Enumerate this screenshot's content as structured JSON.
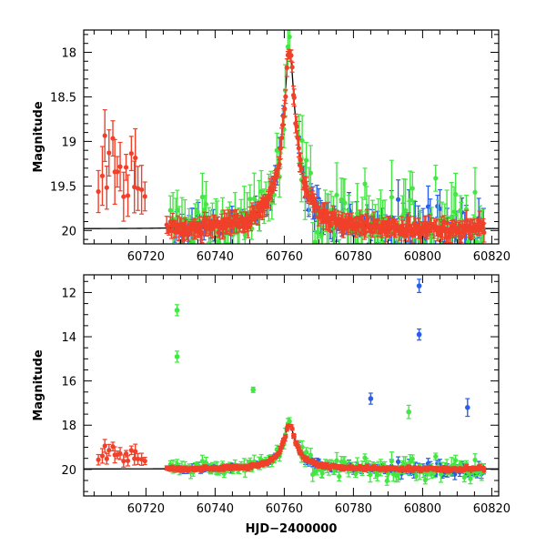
{
  "chart_data": [
    {
      "type": "scatter",
      "xlabel": "",
      "ylabel": "Magnitude",
      "xlim": [
        60702,
        60822
      ],
      "ylim": [
        20.15,
        17.75
      ],
      "y_inverted": true,
      "xticks": [
        60720,
        60740,
        60760,
        60780,
        60800,
        60820
      ],
      "xtick_labels": [
        "60720",
        "60740",
        "60760",
        "60780",
        "60800",
        "60820"
      ],
      "yticks": [
        18,
        18.5,
        19,
        19.5,
        20
      ],
      "ytick_labels": [
        "18",
        "18.5",
        "19",
        "19.5",
        "20"
      ],
      "model_curve": {
        "color": "#000000",
        "baseline": 19.98,
        "peak_mag": 17.98,
        "t0": 60761.5,
        "u0": 0.1,
        "tE": 15
      },
      "series": [
        {
          "color": "#2b5ee8",
          "segments": [
            {
              "x0": 60728,
              "x1": 60760,
              "n": 44,
              "err": 0.12,
              "scatter": 0.14
            },
            {
              "x0": 60764,
              "x1": 60790,
              "n": 40,
              "err": 0.14,
              "scatter": 0.18
            },
            {
              "x0": 60790,
              "x1": 60818,
              "n": 40,
              "err": 0.2,
              "scatter": 0.28
            }
          ]
        },
        {
          "color": "#44e644",
          "segments": [
            {
              "x0": 60727,
              "x1": 60762,
              "n": 55,
              "err": 0.2,
              "scatter": 0.3
            },
            {
              "x0": 60764,
              "x1": 60790,
              "n": 45,
              "err": 0.25,
              "scatter": 0.4
            },
            {
              "x0": 60790,
              "x1": 60818,
              "n": 45,
              "err": 0.28,
              "scatter": 0.45
            }
          ]
        },
        {
          "color": "#f0402a",
          "segments": [
            {
              "x0": 60706,
              "x1": 60720,
              "n": 18,
              "err": 0.25,
              "scatter": 0.25
            },
            {
              "x0": 60726,
              "x1": 60818,
              "n": 300,
              "err": 0.08,
              "scatter": 0.08
            }
          ]
        }
      ]
    },
    {
      "type": "scatter",
      "xlabel": "HJD−2400000",
      "ylabel": "Magnitude",
      "xlim": [
        60702,
        60822
      ],
      "ylim": [
        21.2,
        11.2
      ],
      "y_inverted": true,
      "xticks": [
        60720,
        60740,
        60760,
        60780,
        60800,
        60820
      ],
      "xtick_labels": [
        "60720",
        "60740",
        "60760",
        "60780",
        "60800",
        "60820"
      ],
      "yticks": [
        12,
        14,
        16,
        18,
        20
      ],
      "ytick_labels": [
        "12",
        "14",
        "16",
        "18",
        "20"
      ],
      "model_curve": {
        "color": "#000000",
        "baseline": 19.98,
        "peak_mag": 17.98,
        "t0": 60761.5,
        "u0": 0.1,
        "tE": 15
      },
      "outliers": [
        {
          "x": 60729,
          "y": 12.8,
          "err": 0.25,
          "color": "#44e644"
        },
        {
          "x": 60729,
          "y": 14.9,
          "err": 0.25,
          "color": "#44e644"
        },
        {
          "x": 60751,
          "y": 16.4,
          "err": 0.12,
          "color": "#44e644"
        },
        {
          "x": 60799,
          "y": 11.7,
          "err": 0.3,
          "color": "#2b5ee8"
        },
        {
          "x": 60799,
          "y": 13.9,
          "err": 0.25,
          "color": "#2b5ee8"
        },
        {
          "x": 60796,
          "y": 17.4,
          "err": 0.3,
          "color": "#44e644"
        },
        {
          "x": 60785,
          "y": 16.8,
          "err": 0.25,
          "color": "#2b5ee8"
        },
        {
          "x": 60813,
          "y": 17.2,
          "err": 0.4,
          "color": "#2b5ee8"
        }
      ],
      "series": [
        {
          "color": "#2b5ee8",
          "segments": [
            {
              "x0": 60728,
              "x1": 60760,
              "n": 44,
              "err": 0.12,
              "scatter": 0.14
            },
            {
              "x0": 60764,
              "x1": 60790,
              "n": 40,
              "err": 0.14,
              "scatter": 0.18
            },
            {
              "x0": 60790,
              "x1": 60818,
              "n": 40,
              "err": 0.2,
              "scatter": 0.28
            }
          ]
        },
        {
          "color": "#44e644",
          "segments": [
            {
              "x0": 60727,
              "x1": 60762,
              "n": 55,
              "err": 0.2,
              "scatter": 0.3
            },
            {
              "x0": 60764,
              "x1": 60790,
              "n": 45,
              "err": 0.25,
              "scatter": 0.4
            },
            {
              "x0": 60790,
              "x1": 60818,
              "n": 45,
              "err": 0.28,
              "scatter": 0.45
            }
          ]
        },
        {
          "color": "#f0402a",
          "segments": [
            {
              "x0": 60706,
              "x1": 60720,
              "n": 18,
              "err": 0.25,
              "scatter": 0.25
            },
            {
              "x0": 60726,
              "x1": 60818,
              "n": 300,
              "err": 0.08,
              "scatter": 0.08
            }
          ]
        }
      ]
    }
  ]
}
